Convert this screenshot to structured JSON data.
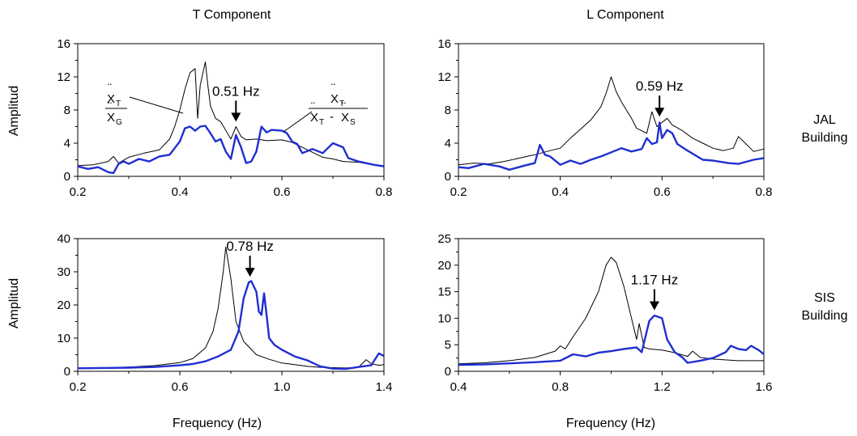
{
  "figure": {
    "column_titles": [
      "T Component",
      "L Component"
    ],
    "row_labels": [
      {
        "line1": "JAL",
        "line2": "Building"
      },
      {
        "line1": "SIS",
        "line2": "Building"
      }
    ],
    "ylabel": "Amplitud",
    "xlabel": "Frequency (Hz)",
    "series_colors": {
      "tf_ground": "#000000",
      "tf_relative": "#1f2fd0"
    },
    "legend_formula": {
      "base": "X",
      "t": "T",
      "g": "G",
      "s": "S",
      "minus": "-"
    }
  },
  "chart_data": [
    {
      "type": "line",
      "panel": "JAL T",
      "xlim": [
        0.2,
        0.8
      ],
      "xticks": [
        "0.2",
        "0.4",
        "0.6",
        "0.8"
      ],
      "xtick_values": [
        0.2,
        0.4,
        0.6,
        0.8
      ],
      "ylim": [
        0,
        16
      ],
      "yticks": [
        "0",
        "4",
        "8",
        "12",
        "16"
      ],
      "ytick_values": [
        0,
        4,
        8,
        12,
        16
      ],
      "annotation": {
        "text": "0.51 Hz",
        "x": 0.51,
        "y": 6.6
      },
      "series": [
        {
          "key": "tf_ground",
          "x": [
            0.2,
            0.23,
            0.26,
            0.27,
            0.28,
            0.3,
            0.33,
            0.36,
            0.38,
            0.39,
            0.4,
            0.41,
            0.42,
            0.43,
            0.435,
            0.44,
            0.45,
            0.455,
            0.46,
            0.47,
            0.48,
            0.5,
            0.51,
            0.52,
            0.53,
            0.55,
            0.57,
            0.6,
            0.62,
            0.65,
            0.68,
            0.7,
            0.72,
            0.75,
            0.78,
            0.8
          ],
          "y": [
            1.3,
            1.4,
            1.8,
            2.4,
            1.6,
            2.3,
            2.8,
            3.2,
            4.5,
            6,
            8,
            10.5,
            12.5,
            13,
            7,
            11,
            13.8,
            11,
            8.5,
            7,
            6.6,
            4.5,
            6,
            4.8,
            4.4,
            4.5,
            4.3,
            4.4,
            4.1,
            3.2,
            2.3,
            2.1,
            1.8,
            1.7,
            1.4,
            1.3
          ]
        },
        {
          "key": "tf_relative",
          "x": [
            0.2,
            0.22,
            0.24,
            0.26,
            0.27,
            0.28,
            0.29,
            0.3,
            0.32,
            0.34,
            0.36,
            0.38,
            0.4,
            0.41,
            0.42,
            0.43,
            0.44,
            0.45,
            0.46,
            0.47,
            0.48,
            0.49,
            0.5,
            0.51,
            0.52,
            0.53,
            0.54,
            0.55,
            0.56,
            0.57,
            0.58,
            0.6,
            0.61,
            0.62,
            0.63,
            0.64,
            0.66,
            0.68,
            0.7,
            0.72,
            0.73,
            0.75,
            0.78,
            0.8
          ],
          "y": [
            1.2,
            0.9,
            1.1,
            0.5,
            0.4,
            1.5,
            1.8,
            1.5,
            2.1,
            1.8,
            2.4,
            2.6,
            4.2,
            5.8,
            6,
            5.5,
            6,
            6.1,
            5.2,
            4.2,
            4.5,
            3,
            2.1,
            5,
            3.5,
            1.6,
            1.8,
            3,
            6,
            5.3,
            5.6,
            5.5,
            5.2,
            4.2,
            3.9,
            2.8,
            3.3,
            2.8,
            4,
            3.5,
            2.2,
            1.8,
            1.4,
            1.2
          ]
        }
      ]
    },
    {
      "type": "line",
      "panel": "JAL L",
      "xlim": [
        0.2,
        0.8
      ],
      "xticks": [
        "0.2",
        "0.4",
        "0.6",
        "0.8"
      ],
      "xtick_values": [
        0.2,
        0.4,
        0.6,
        0.8
      ],
      "ylim": [
        0,
        16
      ],
      "yticks": [
        "0",
        "4",
        "8",
        "12",
        "16"
      ],
      "ytick_values": [
        0,
        4,
        8,
        12,
        16
      ],
      "annotation": {
        "text": "0.59 Hz",
        "x": 0.595,
        "y": 7.2
      },
      "series": [
        {
          "key": "tf_ground",
          "x": [
            0.2,
            0.23,
            0.26,
            0.29,
            0.32,
            0.35,
            0.38,
            0.4,
            0.42,
            0.44,
            0.46,
            0.48,
            0.49,
            0.5,
            0.51,
            0.52,
            0.53,
            0.54,
            0.55,
            0.57,
            0.58,
            0.59,
            0.6,
            0.61,
            0.62,
            0.64,
            0.66,
            0.68,
            0.7,
            0.72,
            0.74,
            0.75,
            0.76,
            0.78,
            0.8
          ],
          "y": [
            1.4,
            1.6,
            1.5,
            1.8,
            2.2,
            2.6,
            3.1,
            3.4,
            4.6,
            5.7,
            6.8,
            8.4,
            10,
            12,
            10.2,
            9,
            8,
            7,
            5.8,
            5.2,
            7.8,
            6,
            6.5,
            7,
            6.2,
            5.5,
            4.6,
            4,
            3.4,
            3.1,
            3.4,
            4.8,
            4.2,
            3,
            3.3
          ]
        },
        {
          "key": "tf_relative",
          "x": [
            0.2,
            0.22,
            0.25,
            0.28,
            0.3,
            0.33,
            0.35,
            0.36,
            0.37,
            0.38,
            0.4,
            0.42,
            0.44,
            0.46,
            0.48,
            0.5,
            0.52,
            0.54,
            0.56,
            0.57,
            0.58,
            0.59,
            0.595,
            0.6,
            0.61,
            0.62,
            0.63,
            0.65,
            0.68,
            0.7,
            0.73,
            0.75,
            0.78,
            0.8
          ],
          "y": [
            1.1,
            1.0,
            1.5,
            1.2,
            0.8,
            1.3,
            1.6,
            3.8,
            2.6,
            2.4,
            1.4,
            1.9,
            1.5,
            2.0,
            2.4,
            2.9,
            3.4,
            3.0,
            3.3,
            4.6,
            3.9,
            4.1,
            6.5,
            4.6,
            5.6,
            5.2,
            3.9,
            3.1,
            2.0,
            1.9,
            1.6,
            1.5,
            2.0,
            2.2
          ]
        }
      ]
    },
    {
      "type": "line",
      "panel": "SIS T",
      "xlim": [
        0.2,
        1.4
      ],
      "xticks": [
        "0.2",
        "0.6",
        "1.0",
        "1.4"
      ],
      "xtick_values": [
        0.2,
        0.6,
        1.0,
        1.4
      ],
      "ylim": [
        0,
        40
      ],
      "yticks": [
        "0",
        "10",
        "20",
        "30",
        "40"
      ],
      "ytick_values": [
        0,
        10,
        20,
        30,
        40
      ],
      "annotation": {
        "text": "0.78 Hz",
        "x": 0.875,
        "y": 28.5
      },
      "series": [
        {
          "key": "tf_ground",
          "x": [
            0.2,
            0.3,
            0.4,
            0.5,
            0.6,
            0.65,
            0.7,
            0.73,
            0.75,
            0.77,
            0.78,
            0.8,
            0.82,
            0.85,
            0.9,
            0.95,
            1.0,
            1.05,
            1.1,
            1.15,
            1.2,
            1.25,
            1.3,
            1.33,
            1.35,
            1.38,
            1.4
          ],
          "y": [
            0.9,
            1.0,
            1.3,
            1.7,
            2.6,
            3.8,
            7,
            12,
            19,
            30,
            37.5,
            28,
            15,
            9,
            5,
            3.6,
            2.5,
            2,
            1.5,
            1.2,
            1.1,
            1.0,
            1.2,
            3.5,
            2.3,
            1.8,
            2.0
          ]
        },
        {
          "key": "tf_relative",
          "x": [
            0.2,
            0.3,
            0.4,
            0.5,
            0.6,
            0.65,
            0.7,
            0.75,
            0.8,
            0.83,
            0.85,
            0.87,
            0.88,
            0.9,
            0.91,
            0.92,
            0.93,
            0.94,
            0.95,
            0.97,
            1.0,
            1.05,
            1.1,
            1.15,
            1.2,
            1.25,
            1.3,
            1.35,
            1.38,
            1.4
          ],
          "y": [
            0.9,
            1.0,
            1.1,
            1.3,
            1.8,
            2.2,
            3,
            4.5,
            6.5,
            12,
            22,
            26.8,
            27.2,
            24,
            18,
            17,
            23.5,
            17,
            10,
            8,
            6.5,
            4.5,
            3.3,
            1.5,
            0.8,
            0.7,
            1.3,
            1.8,
            5.4,
            4.6
          ]
        }
      ]
    },
    {
      "type": "line",
      "panel": "SIS L",
      "xlim": [
        0.4,
        1.6
      ],
      "xticks": [
        "0.4",
        "0.8",
        "1.2",
        "1.6"
      ],
      "xtick_values": [
        0.4,
        0.8,
        1.2,
        1.6
      ],
      "ylim": [
        0,
        25
      ],
      "yticks": [
        "0",
        "5",
        "10",
        "15",
        "20",
        "25"
      ],
      "ytick_values": [
        0,
        5,
        10,
        15,
        20,
        25
      ],
      "annotation": {
        "text": "1.17 Hz",
        "x": 1.17,
        "y": 11.5
      },
      "series": [
        {
          "key": "tf_ground",
          "x": [
            0.4,
            0.5,
            0.6,
            0.7,
            0.78,
            0.8,
            0.82,
            0.85,
            0.9,
            0.95,
            0.98,
            1.0,
            1.02,
            1.05,
            1.08,
            1.1,
            1.11,
            1.13,
            1.15,
            1.2,
            1.25,
            1.3,
            1.32,
            1.35,
            1.4,
            1.5,
            1.6
          ],
          "y": [
            1.4,
            1.6,
            2.0,
            2.6,
            3.8,
            4.8,
            4.2,
            6.5,
            10,
            15,
            20,
            21.5,
            20.5,
            16,
            10,
            6,
            9,
            4.5,
            4.2,
            4.0,
            3.5,
            2.8,
            3.8,
            2.6,
            2.3,
            2.0,
            2.0
          ]
        },
        {
          "key": "tf_relative",
          "x": [
            0.4,
            0.5,
            0.6,
            0.7,
            0.8,
            0.85,
            0.9,
            0.95,
            1.0,
            1.05,
            1.1,
            1.12,
            1.15,
            1.17,
            1.2,
            1.22,
            1.25,
            1.28,
            1.3,
            1.35,
            1.4,
            1.45,
            1.47,
            1.5,
            1.53,
            1.55,
            1.58,
            1.6
          ],
          "y": [
            1.2,
            1.3,
            1.5,
            1.7,
            2.0,
            3.2,
            2.8,
            3.5,
            3.8,
            4.2,
            4.5,
            3.6,
            9.5,
            10.5,
            10.0,
            6.0,
            3.6,
            2.6,
            1.6,
            2.0,
            2.5,
            3.6,
            4.8,
            4.2,
            4.0,
            4.8,
            4.0,
            3.2
          ]
        }
      ]
    }
  ]
}
